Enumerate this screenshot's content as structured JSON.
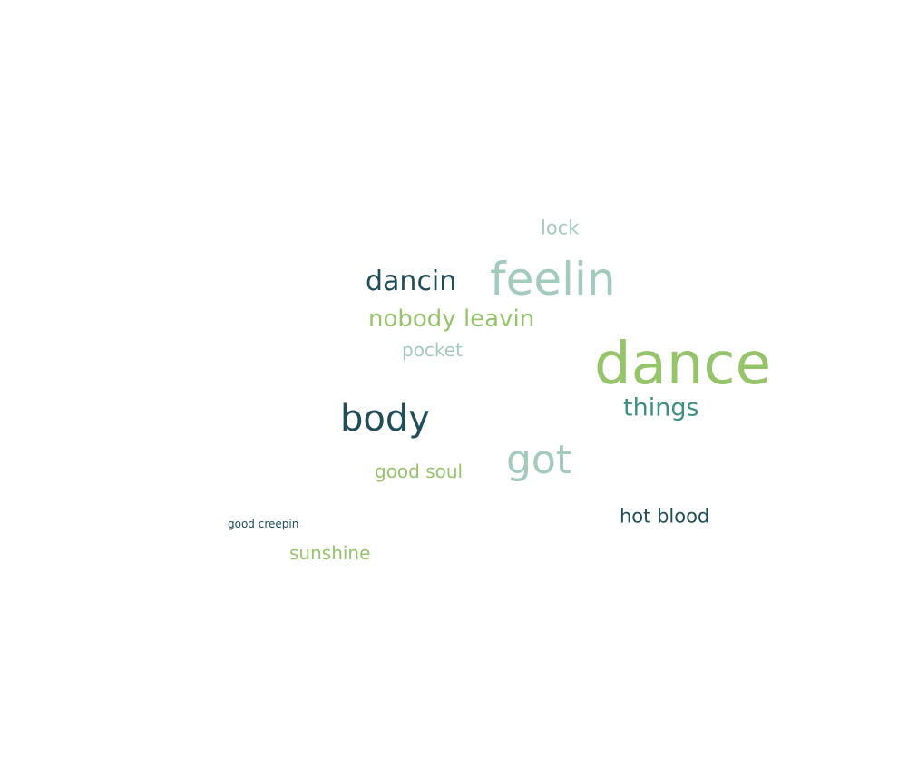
{
  "word_cloud": {
    "words": [
      {
        "id": "lock",
        "text": "lock",
        "color": "#a3cbbb"
      },
      {
        "id": "feelin",
        "text": "feelin",
        "color": "#a3cbbb"
      },
      {
        "id": "dancin",
        "text": "dancin",
        "color": "#1f4e5a"
      },
      {
        "id": "nobody_leavin",
        "text": "nobody leavin",
        "color": "#96c46a"
      },
      {
        "id": "pocket",
        "text": "pocket",
        "color": "#a3cbbb"
      },
      {
        "id": "dance",
        "text": "dance",
        "color": "#96c46a"
      },
      {
        "id": "things",
        "text": "things",
        "color": "#3d8f86"
      },
      {
        "id": "body",
        "text": "body",
        "color": "#1f4e5a"
      },
      {
        "id": "got",
        "text": "got",
        "color": "#a3cbbb"
      },
      {
        "id": "good_soul",
        "text": "good soul",
        "color": "#96c46a"
      },
      {
        "id": "hot_blood",
        "text": "hot blood",
        "color": "#1f4e5a"
      },
      {
        "id": "good_creepin",
        "text": "good creepin",
        "color": "#1f4e5a"
      },
      {
        "id": "sunshine",
        "text": "sunshine",
        "color": "#96c46a"
      }
    ]
  }
}
